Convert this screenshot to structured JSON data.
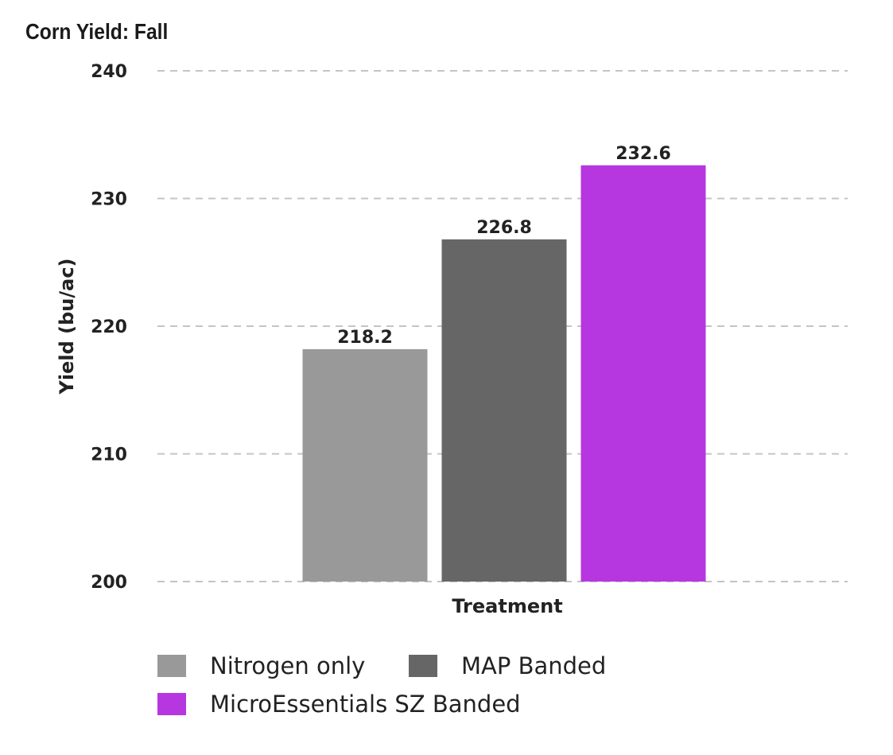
{
  "chart_data": {
    "type": "bar",
    "title": "Corn Yield: Fall",
    "xlabel": "Treatment",
    "ylabel": "Yield (bu/ac)",
    "ylim": [
      200,
      240
    ],
    "yticks": [
      200,
      210,
      220,
      230,
      240
    ],
    "grid": true,
    "legend_position": "bottom-left",
    "series": [
      {
        "name": "Nitrogen only",
        "values": [
          218.2
        ],
        "label": "218.2",
        "color": "#999999"
      },
      {
        "name": "MAP Banded",
        "values": [
          226.8
        ],
        "label": "226.8",
        "color": "#666666"
      },
      {
        "name": "MicroEssentials SZ Banded",
        "values": [
          232.6
        ],
        "label": "232.6",
        "color": "#b637e0"
      }
    ]
  }
}
